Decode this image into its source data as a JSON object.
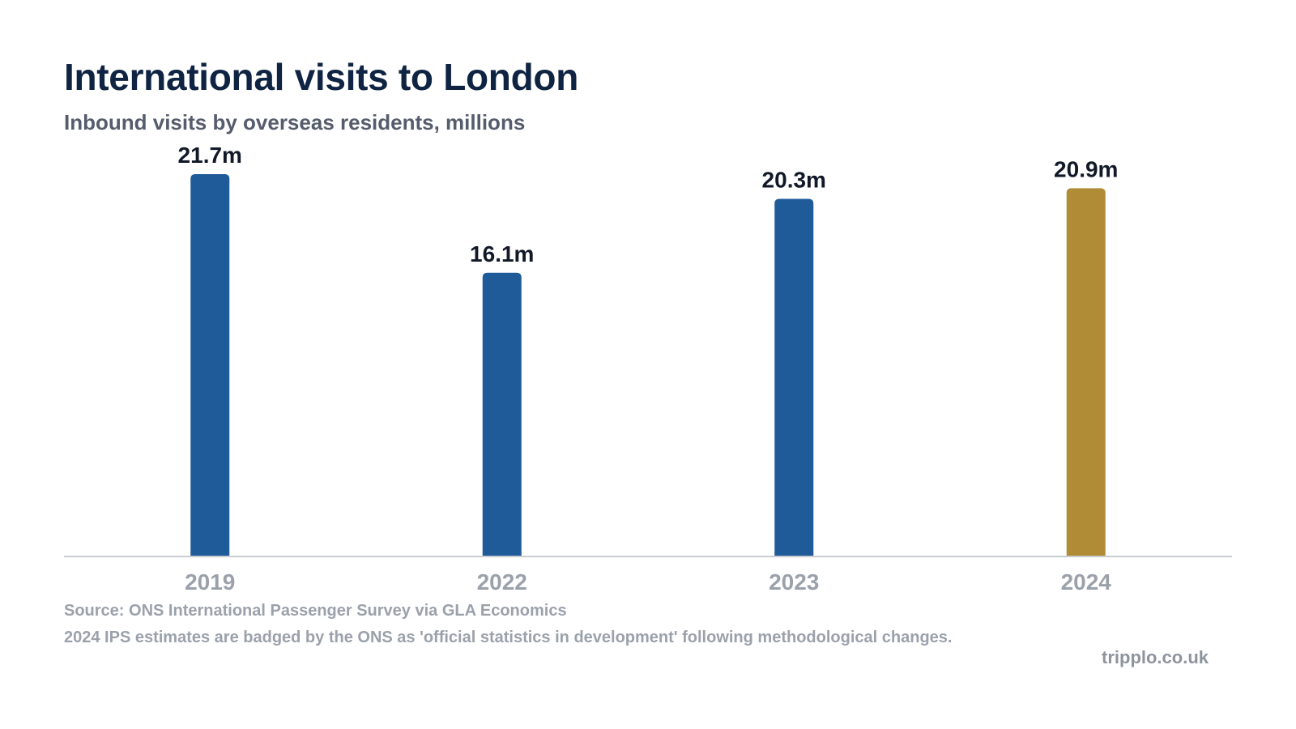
{
  "chart_data": {
    "type": "bar",
    "title": "International visits to London",
    "subtitle": "Inbound visits by overseas residents, millions",
    "categories": [
      "2019",
      "2022",
      "2023",
      "2024"
    ],
    "values": [
      21.7,
      16.1,
      20.3,
      20.9
    ],
    "data_labels": [
      "21.7m",
      "16.1m",
      "20.3m",
      "20.9m"
    ],
    "colors": [
      "#1f5a99",
      "#1f5a99",
      "#1f5a99",
      "#b08c36"
    ],
    "ylim": [
      0,
      21.7
    ],
    "grid": false,
    "legend": "none",
    "xlabel": "",
    "ylabel": ""
  },
  "footer": {
    "source": "Source: ONS International Passenger Survey via GLA Economics",
    "note": "2024 IPS estimates are badged by the ONS as 'official statistics in development' following methodological changes.",
    "brand": "tripplo.co.uk"
  },
  "colors": {
    "title": "#0f2342",
    "subtitle": "#555c6b",
    "axis": "#c9ccd1",
    "tick_label": "#9ba1ab",
    "data_label": "#111827"
  }
}
